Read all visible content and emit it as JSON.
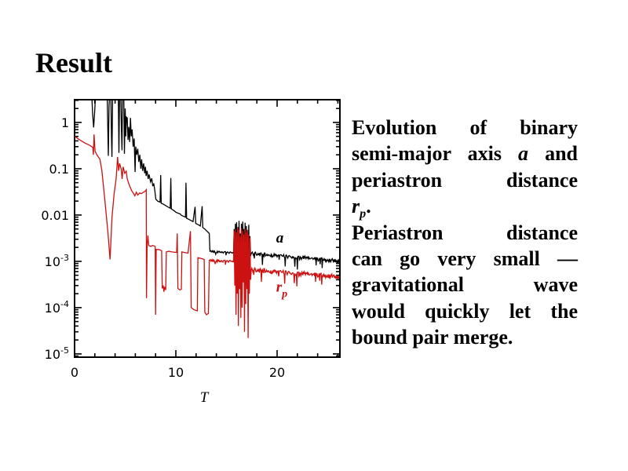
{
  "slide": {
    "title": "Result",
    "background": "#ffffff",
    "text_color": "#000000"
  },
  "description": {
    "lines": [
      {
        "justify": true,
        "segments": [
          {
            "text": "Evolution of binary"
          }
        ]
      },
      {
        "justify": true,
        "segments": [
          {
            "text": "semi-major axis "
          },
          {
            "math": "a"
          },
          {
            "text": " and"
          }
        ]
      },
      {
        "justify": true,
        "segments": [
          {
            "text": "periastron distance"
          }
        ]
      },
      {
        "justify": false,
        "segments": [
          {
            "math": "r",
            "sub": "p"
          },
          {
            "text": "."
          }
        ]
      },
      {
        "justify": true,
        "segments": [
          {
            "text": "Periastron distance"
          }
        ]
      },
      {
        "justify": true,
        "segments": [
          {
            "text": "can go very small —"
          }
        ]
      },
      {
        "justify": true,
        "segments": [
          {
            "text": "gravitational wave"
          }
        ]
      },
      {
        "justify": true,
        "segments": [
          {
            "text": "would quickly let the"
          }
        ]
      },
      {
        "justify": false,
        "segments": [
          {
            "text": "bound pair merge."
          }
        ]
      }
    ]
  },
  "chart_data": {
    "type": "line",
    "title": "",
    "xlabel": "T",
    "ylabel": "",
    "grid": false,
    "scale_y": "log",
    "x_axis": {
      "range": [
        0,
        26.2
      ],
      "minor_step": 2,
      "label": "T",
      "ticks": [
        {
          "v": 0,
          "label": "0"
        },
        {
          "v": 10,
          "label": "10"
        },
        {
          "v": 20,
          "label": "20"
        }
      ]
    },
    "y_axis": {
      "range": [
        8.5e-06,
        3.1
      ],
      "ticks": [
        {
          "v": 1,
          "label": "1"
        },
        {
          "v": 0.1,
          "label": "0.1"
        },
        {
          "v": 0.01,
          "label": "0.01"
        },
        {
          "v": 0.001,
          "label": "10^-3"
        },
        {
          "v": 0.0001,
          "label": "10^-4"
        },
        {
          "v": 1e-05,
          "label": "10^-5"
        }
      ]
    },
    "series": [
      {
        "name": "semi-major axis",
        "symbol": "a",
        "symbol_sub": "",
        "color": "#000000",
        "label_pos": [
          19.9,
          0.0032
        ],
        "noise_bands": [
          {
            "t_from": 13.36,
            "t_to": 15.7,
            "amplitude_dex": 0.02,
            "spike_dex": 0.12,
            "spike_prob": 0.06
          },
          {
            "t_from": 17.45,
            "t_to": 26.2,
            "amplitude_dex": 0.04,
            "spike_dex": 0.28,
            "spike_prob": 0.1
          }
        ],
        "points": [
          [
            0,
            4
          ],
          [
            1.7,
            4
          ],
          [
            1.78,
            1.5
          ],
          [
            1.88,
            0.78
          ],
          [
            1.98,
            1.6
          ],
          [
            2.08,
            4
          ],
          [
            3.22,
            4
          ],
          [
            3.28,
            0.8
          ],
          [
            3.33,
            0.19
          ],
          [
            3.4,
            2.2
          ],
          [
            3.46,
            4
          ],
          [
            3.58,
            4
          ],
          [
            3.64,
            0.5
          ],
          [
            3.69,
            0.18
          ],
          [
            3.76,
            4
          ],
          [
            4.32,
            4
          ],
          [
            4.38,
            0.22
          ],
          [
            4.44,
            4
          ],
          [
            4.56,
            4
          ],
          [
            4.62,
            0.8
          ],
          [
            4.68,
            0.25
          ],
          [
            4.74,
            4
          ],
          [
            4.86,
            4
          ],
          [
            4.92,
            0.21
          ],
          [
            5.0,
            2.0
          ],
          [
            5.06,
            0.5
          ],
          [
            5.12,
            1.3
          ],
          [
            5.2,
            1.25
          ],
          [
            5.28,
            0.42
          ],
          [
            5.36,
            0.8
          ],
          [
            5.44,
            0.38
          ],
          [
            5.52,
            1.26
          ],
          [
            5.6,
            0.5
          ],
          [
            5.68,
            0.7
          ],
          [
            5.78,
            0.3
          ],
          [
            5.88,
            0.45
          ],
          [
            5.98,
            0.085
          ],
          [
            6.04,
            0.3
          ],
          [
            6.14,
            0.2
          ],
          [
            6.24,
            0.27
          ],
          [
            6.34,
            0.14
          ],
          [
            6.44,
            0.2
          ],
          [
            6.54,
            0.1
          ],
          [
            6.62,
            0.16
          ],
          [
            6.72,
            0.09
          ],
          [
            6.82,
            0.13
          ],
          [
            6.92,
            0.08
          ],
          [
            7.0,
            0.11
          ],
          [
            7.06,
            0.07
          ],
          [
            7.16,
            0.09
          ],
          [
            7.26,
            0.06
          ],
          [
            7.36,
            0.075
          ],
          [
            7.5,
            0.052
          ],
          [
            7.62,
            0.062
          ],
          [
            7.72,
            0.042
          ],
          [
            7.82,
            0.048
          ],
          [
            7.92,
            0.034
          ],
          [
            8.02,
            0.022
          ],
          [
            8.2,
            0.02
          ],
          [
            8.44,
            0.019
          ],
          [
            8.5,
            0.073
          ],
          [
            8.56,
            0.018
          ],
          [
            8.8,
            0.017
          ],
          [
            9.0,
            0.016
          ],
          [
            9.2,
            0.015
          ],
          [
            9.44,
            0.014
          ],
          [
            9.5,
            0.063
          ],
          [
            9.56,
            0.0135
          ],
          [
            9.8,
            0.0125
          ],
          [
            10.0,
            0.0115
          ],
          [
            10.2,
            0.011
          ],
          [
            10.45,
            0.0105
          ],
          [
            10.5,
            0.01
          ],
          [
            10.7,
            0.0095
          ],
          [
            10.95,
            0.009
          ],
          [
            11.0,
            0.05
          ],
          [
            11.06,
            0.0085
          ],
          [
            11.3,
            0.008
          ],
          [
            11.5,
            0.0076
          ],
          [
            11.7,
            0.0072
          ],
          [
            11.9,
            0.015
          ],
          [
            11.96,
            0.0066
          ],
          [
            12.2,
            0.0062
          ],
          [
            12.42,
            0.0058
          ],
          [
            12.6,
            0.0155
          ],
          [
            12.66,
            0.0054
          ],
          [
            12.9,
            0.0049
          ],
          [
            13.1,
            0.0044
          ],
          [
            13.3,
            0.004
          ],
          [
            13.36,
            0.00165
          ],
          [
            14.2,
            0.0016
          ],
          [
            15.0,
            0.00155
          ],
          [
            15.7,
            0.0015
          ],
          [
            15.76,
            0.005
          ],
          [
            15.82,
            0.0012
          ],
          [
            15.88,
            0.0065
          ],
          [
            15.94,
            0.0009
          ],
          [
            16.0,
            0.007
          ],
          [
            16.06,
            0.0003
          ],
          [
            16.12,
            0.0055
          ],
          [
            16.18,
            0.0008
          ],
          [
            16.24,
            0.0075
          ],
          [
            16.3,
            0.001
          ],
          [
            16.36,
            0.004
          ],
          [
            16.42,
            0.0002
          ],
          [
            16.48,
            0.0065
          ],
          [
            16.54,
            0.0009
          ],
          [
            16.6,
            0.0072
          ],
          [
            16.66,
            0.0011
          ],
          [
            16.72,
            0.005
          ],
          [
            16.78,
            0.00025
          ],
          [
            16.84,
            0.0068
          ],
          [
            16.9,
            0.001
          ],
          [
            16.96,
            0.0058
          ],
          [
            17.02,
            0.0007
          ],
          [
            17.08,
            0.0042
          ],
          [
            17.14,
            0.0012
          ],
          [
            17.2,
            0.0062
          ],
          [
            17.26,
            0.0004
          ],
          [
            17.32,
            0.0035
          ],
          [
            17.38,
            0.0013
          ],
          [
            17.45,
            0.00148
          ],
          [
            18.5,
            0.0014
          ],
          [
            19.5,
            0.00135
          ],
          [
            20.5,
            0.0013
          ],
          [
            21.5,
            0.00125
          ],
          [
            22.5,
            0.0012
          ],
          [
            23.5,
            0.00115
          ],
          [
            24.5,
            0.0011
          ],
          [
            25.5,
            0.00105
          ],
          [
            26.2,
            0.001
          ]
        ]
      },
      {
        "name": "periastron distance",
        "symbol": "r",
        "symbol_sub": "p",
        "color": "#cc1111",
        "label_pos": [
          19.9,
          0.00028
        ],
        "noise_bands": [
          {
            "t_from": 13.3,
            "t_to": 15.7,
            "amplitude_dex": 0.025,
            "spike_dex": 0.15,
            "spike_prob": 0.06
          },
          {
            "t_from": 17.45,
            "t_to": 26.2,
            "amplitude_dex": 0.05,
            "spike_dex": 0.3,
            "spike_prob": 0.1
          }
        ],
        "points": [
          [
            0,
            0.5
          ],
          [
            0.5,
            0.42
          ],
          [
            1.0,
            0.36
          ],
          [
            1.5,
            0.32
          ],
          [
            1.8,
            0.29
          ],
          [
            1.86,
            0.2
          ],
          [
            1.92,
            0.55
          ],
          [
            2.02,
            0.24
          ],
          [
            2.2,
            0.2
          ],
          [
            2.5,
            0.16
          ],
          [
            2.7,
            0.09
          ],
          [
            3.0,
            0.02
          ],
          [
            3.3,
            0.004
          ],
          [
            3.5,
            0.0011
          ],
          [
            3.7,
            0.009
          ],
          [
            3.9,
            0.028
          ],
          [
            4.1,
            0.06
          ],
          [
            4.25,
            0.18
          ],
          [
            4.35,
            0.09
          ],
          [
            4.45,
            0.13
          ],
          [
            4.6,
            0.1
          ],
          [
            4.7,
            0.06
          ],
          [
            4.8,
            0.11
          ],
          [
            4.95,
            0.08
          ],
          [
            5.1,
            0.088
          ],
          [
            5.2,
            0.06
          ],
          [
            5.32,
            0.05
          ],
          [
            5.45,
            0.042
          ],
          [
            5.65,
            0.033
          ],
          [
            5.8,
            0.03
          ],
          [
            5.95,
            0.026
          ],
          [
            6.1,
            0.031
          ],
          [
            6.25,
            0.027
          ],
          [
            6.42,
            0.03
          ],
          [
            6.6,
            0.029
          ],
          [
            6.8,
            0.031
          ],
          [
            7.0,
            0.033
          ],
          [
            7.08,
            0.035
          ],
          [
            7.1,
            0.00016
          ],
          [
            7.16,
            0.0022
          ],
          [
            7.24,
            0.0036
          ],
          [
            7.32,
            0.0022
          ],
          [
            7.52,
            0.0021
          ],
          [
            7.72,
            0.0022
          ],
          [
            7.96,
            0.0021
          ],
          [
            8.0,
            7e-05
          ],
          [
            8.06,
            0.0018
          ],
          [
            8.3,
            0.0018
          ],
          [
            8.6,
            0.0017
          ],
          [
            8.66,
            0.00026
          ],
          [
            8.76,
            0.0003
          ],
          [
            8.82,
            0.00022
          ],
          [
            8.9,
            0.00028
          ],
          [
            9.0,
            0.00024
          ],
          [
            9.06,
            0.0016
          ],
          [
            9.3,
            0.00165
          ],
          [
            9.6,
            0.0016
          ],
          [
            10.08,
            0.00155
          ],
          [
            10.14,
            0.004
          ],
          [
            10.2,
            0.00026
          ],
          [
            10.4,
            0.00024
          ],
          [
            10.54,
            0.00025
          ],
          [
            10.6,
            0.0016
          ],
          [
            10.9,
            0.00155
          ],
          [
            11.2,
            0.0015
          ],
          [
            11.44,
            0.0045
          ],
          [
            11.52,
            0.0001
          ],
          [
            11.8,
            9e-05
          ],
          [
            12.12,
            8.5e-05
          ],
          [
            12.18,
            0.0012
          ],
          [
            12.5,
            0.00115
          ],
          [
            12.8,
            0.0011
          ],
          [
            12.86,
            8e-05
          ],
          [
            13.02,
            7e-05
          ],
          [
            13.22,
            7.5e-05
          ],
          [
            13.3,
            0.00105
          ],
          [
            14.2,
            0.00102
          ],
          [
            15.0,
            0.001
          ],
          [
            15.7,
            0.00098
          ],
          [
            15.76,
            0.0045
          ],
          [
            15.82,
            0.0003
          ],
          [
            15.88,
            0.005
          ],
          [
            15.94,
            7e-05
          ],
          [
            16.0,
            0.0042
          ],
          [
            16.06,
            0.0002
          ],
          [
            16.12,
            0.0055
          ],
          [
            16.18,
            4e-05
          ],
          [
            16.24,
            0.0048
          ],
          [
            16.3,
            0.00025
          ],
          [
            16.36,
            0.0035
          ],
          [
            16.42,
            6e-05
          ],
          [
            16.48,
            0.0052
          ],
          [
            16.54,
            0.0001
          ],
          [
            16.6,
            0.0045
          ],
          [
            16.66,
            0.00035
          ],
          [
            16.72,
            0.0038
          ],
          [
            16.78,
            3e-05
          ],
          [
            16.84,
            0.005
          ],
          [
            16.9,
            0.00012
          ],
          [
            16.96,
            0.0042
          ],
          [
            17.02,
            0.00025
          ],
          [
            17.08,
            0.0048
          ],
          [
            17.14,
            2.2e-05
          ],
          [
            17.2,
            0.0038
          ],
          [
            17.26,
            0.0002
          ],
          [
            17.32,
            0.0032
          ],
          [
            17.38,
            0.0004
          ],
          [
            17.45,
            0.00065
          ],
          [
            18.5,
            0.00063
          ],
          [
            19.5,
            0.0006
          ],
          [
            20.5,
            0.00058
          ],
          [
            21.5,
            0.00056
          ],
          [
            22.5,
            0.00054
          ],
          [
            23.5,
            0.00052
          ],
          [
            24.5,
            0.0005
          ],
          [
            25.5,
            0.00048
          ],
          [
            26.2,
            0.00046
          ]
        ]
      }
    ]
  }
}
